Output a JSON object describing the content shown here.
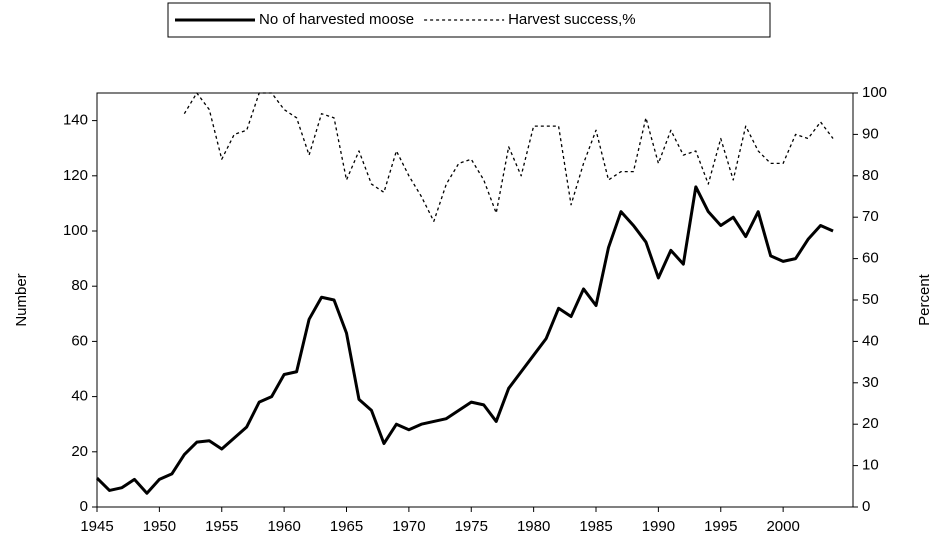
{
  "chart_data": {
    "type": "line",
    "x": [
      1945,
      1946,
      1947,
      1948,
      1949,
      1950,
      1951,
      1952,
      1953,
      1954,
      1955,
      1956,
      1957,
      1958,
      1959,
      1960,
      1961,
      1962,
      1963,
      1964,
      1965,
      1966,
      1967,
      1968,
      1969,
      1970,
      1971,
      1972,
      1973,
      1974,
      1975,
      1976,
      1977,
      1978,
      1979,
      1980,
      1981,
      1982,
      1983,
      1984,
      1985,
      1986,
      1987,
      1988,
      1989,
      1990,
      1991,
      1992,
      1993,
      1994,
      1995,
      1996,
      1997,
      1998,
      1999,
      2000,
      2001,
      2002,
      2003,
      2004
    ],
    "series": [
      {
        "name": "No of harvested moose",
        "color": "#000000",
        "style": "solid",
        "values": [
          10.5,
          6,
          7,
          10,
          5,
          10,
          12,
          19,
          23.5,
          24,
          21,
          25,
          29,
          38,
          40,
          48,
          49,
          68,
          76,
          75,
          63,
          39,
          35,
          23,
          30,
          28,
          30,
          31,
          32,
          35,
          38,
          37,
          31,
          43,
          49,
          55,
          61,
          72,
          69,
          79,
          73,
          94,
          107,
          102,
          96,
          83,
          93,
          88,
          116,
          107,
          102,
          105,
          98,
          107,
          91,
          89,
          90,
          97,
          102,
          100
        ]
      },
      {
        "name": "Harvest success,%",
        "color": "#000000",
        "style": "dashed",
        "axis": "y2",
        "values": [
          null,
          null,
          null,
          null,
          null,
          null,
          null,
          95,
          100,
          96,
          84,
          90,
          91,
          100,
          100,
          96,
          94,
          85,
          95,
          94,
          79,
          86,
          78,
          76,
          86,
          80,
          75,
          69,
          78,
          83,
          84,
          79,
          71,
          87,
          80,
          92,
          92,
          92,
          73,
          83,
          91,
          79,
          81,
          81,
          94,
          83,
          91,
          85,
          86,
          78,
          89,
          79,
          92,
          86,
          83,
          83,
          90,
          89,
          93,
          89
        ]
      }
    ],
    "y_label": "Number",
    "y2_label": "Percent",
    "xlim": [
      1945,
      2005.6
    ],
    "xticks": [
      1945,
      1950,
      1955,
      1960,
      1965,
      1970,
      1975,
      1980,
      1985,
      1990,
      1995,
      2000
    ],
    "ylim": [
      0,
      150
    ],
    "yticks": [
      0,
      20,
      40,
      60,
      80,
      100,
      120,
      140
    ],
    "y2lim": [
      0,
      100
    ],
    "y2ticks": [
      0,
      10,
      20,
      30,
      40,
      50,
      60,
      70,
      80,
      90,
      100
    ],
    "legend": "top"
  }
}
